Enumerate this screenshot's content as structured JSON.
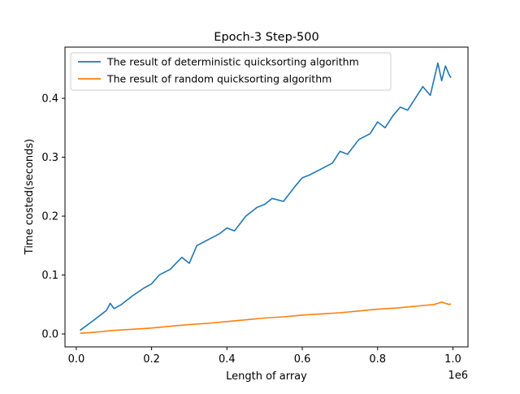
{
  "chart_data": {
    "type": "line",
    "title": "Epoch-3 Step-500",
    "xlabel": "Length of array",
    "ylabel": "Time costed(seconds)",
    "x_offset_label": "1e6",
    "xlim": [
      -0.03,
      1.04
    ],
    "ylim": [
      -0.022,
      0.487
    ],
    "x_ticks": [
      0.0,
      0.2,
      0.4,
      0.6,
      0.8,
      1.0
    ],
    "x_tick_labels": [
      "0.0",
      "0.2",
      "0.4",
      "0.6",
      "0.8",
      "1.0"
    ],
    "y_ticks": [
      0.0,
      0.1,
      0.2,
      0.3,
      0.4
    ],
    "y_tick_labels": [
      "0.0",
      "0.1",
      "0.2",
      "0.3",
      "0.4"
    ],
    "grid": false,
    "legend_position": "top-left",
    "series": [
      {
        "name": "The result of deterministic quicksorting algorithm",
        "color": "#1f77b4",
        "x": [
          0.01,
          0.05,
          0.08,
          0.09,
          0.1,
          0.12,
          0.15,
          0.18,
          0.2,
          0.22,
          0.25,
          0.28,
          0.3,
          0.32,
          0.35,
          0.38,
          0.4,
          0.42,
          0.45,
          0.48,
          0.5,
          0.52,
          0.55,
          0.58,
          0.6,
          0.62,
          0.65,
          0.68,
          0.7,
          0.72,
          0.75,
          0.78,
          0.8,
          0.82,
          0.84,
          0.86,
          0.88,
          0.9,
          0.92,
          0.94,
          0.96,
          0.97,
          0.98,
          0.99,
          0.995
        ],
        "y": [
          0.006,
          0.025,
          0.04,
          0.052,
          0.043,
          0.05,
          0.065,
          0.078,
          0.085,
          0.1,
          0.11,
          0.13,
          0.12,
          0.15,
          0.16,
          0.17,
          0.18,
          0.175,
          0.2,
          0.215,
          0.22,
          0.23,
          0.225,
          0.25,
          0.265,
          0.27,
          0.28,
          0.29,
          0.31,
          0.305,
          0.33,
          0.34,
          0.36,
          0.35,
          0.37,
          0.385,
          0.38,
          0.4,
          0.42,
          0.405,
          0.46,
          0.43,
          0.455,
          0.44,
          0.435
        ]
      },
      {
        "name": "The result of random quicksorting algorithm",
        "color": "#ff7f0e",
        "x": [
          0.01,
          0.05,
          0.1,
          0.15,
          0.2,
          0.25,
          0.3,
          0.35,
          0.4,
          0.45,
          0.5,
          0.55,
          0.6,
          0.65,
          0.7,
          0.75,
          0.8,
          0.85,
          0.9,
          0.95,
          0.97,
          0.99,
          0.995
        ],
        "y": [
          0.001,
          0.003,
          0.006,
          0.008,
          0.01,
          0.013,
          0.016,
          0.018,
          0.021,
          0.024,
          0.027,
          0.029,
          0.032,
          0.034,
          0.036,
          0.039,
          0.042,
          0.044,
          0.047,
          0.05,
          0.054,
          0.05,
          0.051
        ]
      }
    ]
  }
}
